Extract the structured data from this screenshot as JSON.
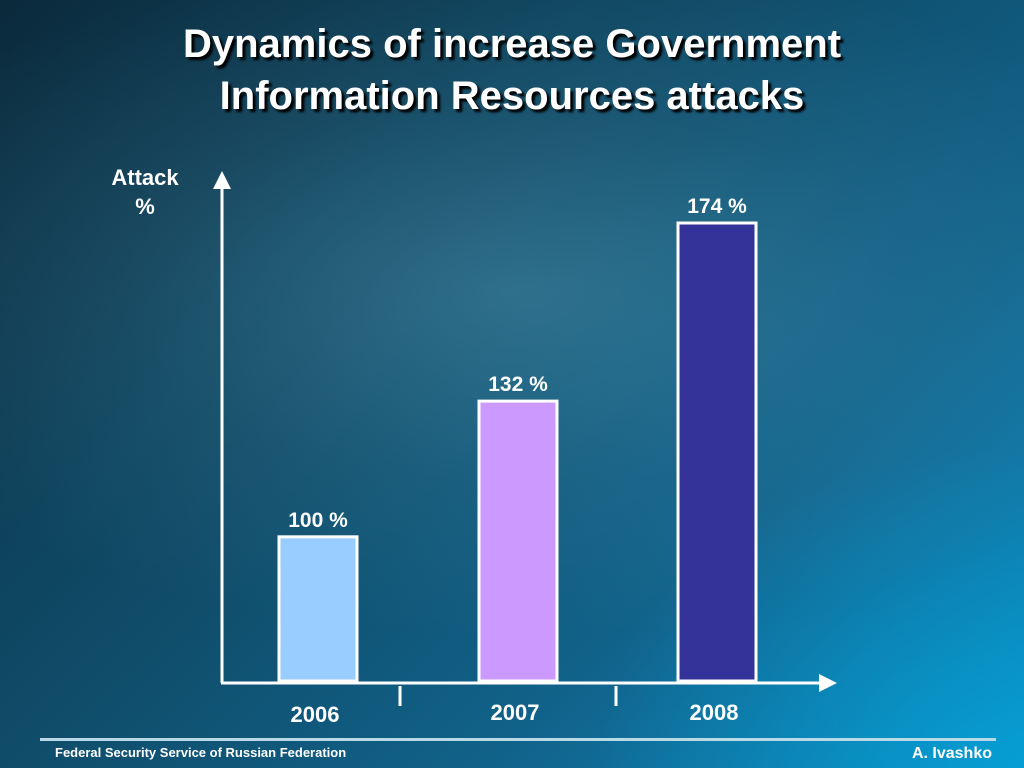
{
  "slide": {
    "title_line1": "Dynamics of increase Government",
    "title_line2": "Information Resources attacks",
    "footer_left": "Federal Security Service of Russian Federation",
    "footer_right": "A. Ivashko"
  },
  "chart_data": {
    "type": "bar",
    "title": "Dynamics of increase Government Information Resources attacks",
    "ylabel_line1": "Attack",
    "ylabel_line2": "%",
    "xlabel": "",
    "categories": [
      "2006",
      "2007",
      "2008"
    ],
    "values": [
      100,
      132,
      174
    ],
    "data_labels": [
      "100 %",
      "132 %",
      "174 %"
    ],
    "ylim": [
      66,
      174
    ],
    "grid": false,
    "legend": "none",
    "colors": [
      "#99ccff",
      "#cc99ff",
      "#333399"
    ],
    "bar_border": "#ffffff",
    "axis_color": "#ffffff"
  }
}
